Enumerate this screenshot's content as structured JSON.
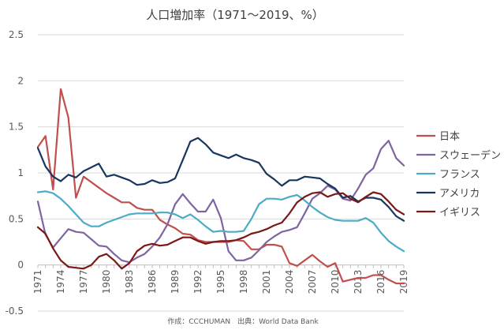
{
  "chart_data": {
    "type": "line",
    "title": "人口増加率（1971〜2019、%）",
    "source_note": "作成：CCCHUMAN　出典：World Data Bank",
    "ylim": [
      -0.5,
      2.5
    ],
    "y_ticks": [
      "2.5",
      "2",
      "1.5",
      "1",
      "0.5",
      "0",
      "-0.5"
    ],
    "x_ticks": [
      "1971",
      "1974",
      "1977",
      "1980",
      "1983",
      "1986",
      "1989",
      "1992",
      "1995",
      "1998",
      "2001",
      "2004",
      "2007",
      "2010",
      "2013",
      "2016",
      "2019"
    ],
    "x": [
      1971,
      1972,
      1973,
      1974,
      1975,
      1976,
      1977,
      1978,
      1979,
      1980,
      1981,
      1982,
      1983,
      1984,
      1985,
      1986,
      1987,
      1988,
      1989,
      1990,
      1991,
      1992,
      1993,
      1994,
      1995,
      1996,
      1997,
      1998,
      1999,
      2000,
      2001,
      2002,
      2003,
      2004,
      2005,
      2006,
      2007,
      2008,
      2009,
      2010,
      2011,
      2012,
      2013,
      2014,
      2015,
      2016,
      2017,
      2018,
      2019
    ],
    "series": [
      {
        "name": "日本",
        "color": "#c0504d",
        "values": [
          1.28,
          1.4,
          0.82,
          1.91,
          1.6,
          0.73,
          0.96,
          0.9,
          0.84,
          0.78,
          0.73,
          0.68,
          0.68,
          0.62,
          0.6,
          0.6,
          0.49,
          0.44,
          0.4,
          0.34,
          0.33,
          0.27,
          0.25,
          0.25,
          0.25,
          0.25,
          0.27,
          0.26,
          0.17,
          0.17,
          0.22,
          0.22,
          0.2,
          0.02,
          -0.01,
          0.05,
          0.11,
          0.04,
          -0.02,
          0.02,
          -0.18,
          -0.16,
          -0.14,
          -0.14,
          -0.11,
          -0.11,
          -0.16,
          -0.2,
          -0.2
        ]
      },
      {
        "name": "スウェーデン",
        "color": "#8064a2",
        "values": [
          0.69,
          0.33,
          0.19,
          0.29,
          0.39,
          0.36,
          0.35,
          0.28,
          0.21,
          0.2,
          0.12,
          0.05,
          0.03,
          0.08,
          0.12,
          0.2,
          0.3,
          0.44,
          0.66,
          0.77,
          0.67,
          0.58,
          0.58,
          0.71,
          0.51,
          0.15,
          0.05,
          0.05,
          0.08,
          0.16,
          0.25,
          0.31,
          0.36,
          0.38,
          0.41,
          0.56,
          0.72,
          0.78,
          0.86,
          0.82,
          0.72,
          0.7,
          0.83,
          0.98,
          1.05,
          1.26,
          1.35,
          1.16,
          1.08
        ]
      },
      {
        "name": "フランス",
        "color": "#4bacc6",
        "values": [
          0.79,
          0.8,
          0.78,
          0.72,
          0.64,
          0.55,
          0.46,
          0.42,
          0.42,
          0.46,
          0.49,
          0.52,
          0.55,
          0.56,
          0.56,
          0.56,
          0.57,
          0.57,
          0.55,
          0.51,
          0.55,
          0.49,
          0.42,
          0.36,
          0.37,
          0.36,
          0.36,
          0.37,
          0.5,
          0.66,
          0.72,
          0.72,
          0.71,
          0.74,
          0.76,
          0.7,
          0.63,
          0.57,
          0.52,
          0.49,
          0.48,
          0.48,
          0.48,
          0.51,
          0.46,
          0.35,
          0.26,
          0.2,
          0.15
        ]
      },
      {
        "name": "アメリカ",
        "color": "#17375e",
        "values": [
          1.27,
          1.07,
          0.96,
          0.91,
          0.98,
          0.95,
          1.02,
          1.06,
          1.1,
          0.96,
          0.98,
          0.95,
          0.92,
          0.87,
          0.88,
          0.92,
          0.89,
          0.9,
          0.94,
          1.14,
          1.34,
          1.38,
          1.31,
          1.22,
          1.19,
          1.16,
          1.2,
          1.16,
          1.14,
          1.11,
          0.99,
          0.93,
          0.86,
          0.92,
          0.92,
          0.96,
          0.95,
          0.94,
          0.88,
          0.83,
          0.73,
          0.75,
          0.69,
          0.73,
          0.73,
          0.71,
          0.63,
          0.53,
          0.48
        ]
      },
      {
        "name": "イギリス",
        "color": "#7b1818",
        "values": [
          0.41,
          0.34,
          0.18,
          0.05,
          -0.02,
          -0.03,
          -0.04,
          0.0,
          0.09,
          0.12,
          0.05,
          -0.04,
          0.02,
          0.15,
          0.21,
          0.23,
          0.21,
          0.22,
          0.26,
          0.3,
          0.3,
          0.26,
          0.23,
          0.25,
          0.26,
          0.26,
          0.27,
          0.3,
          0.34,
          0.36,
          0.39,
          0.43,
          0.46,
          0.56,
          0.68,
          0.74,
          0.78,
          0.79,
          0.74,
          0.77,
          0.78,
          0.72,
          0.68,
          0.74,
          0.79,
          0.77,
          0.69,
          0.6,
          0.55
        ]
      }
    ]
  }
}
